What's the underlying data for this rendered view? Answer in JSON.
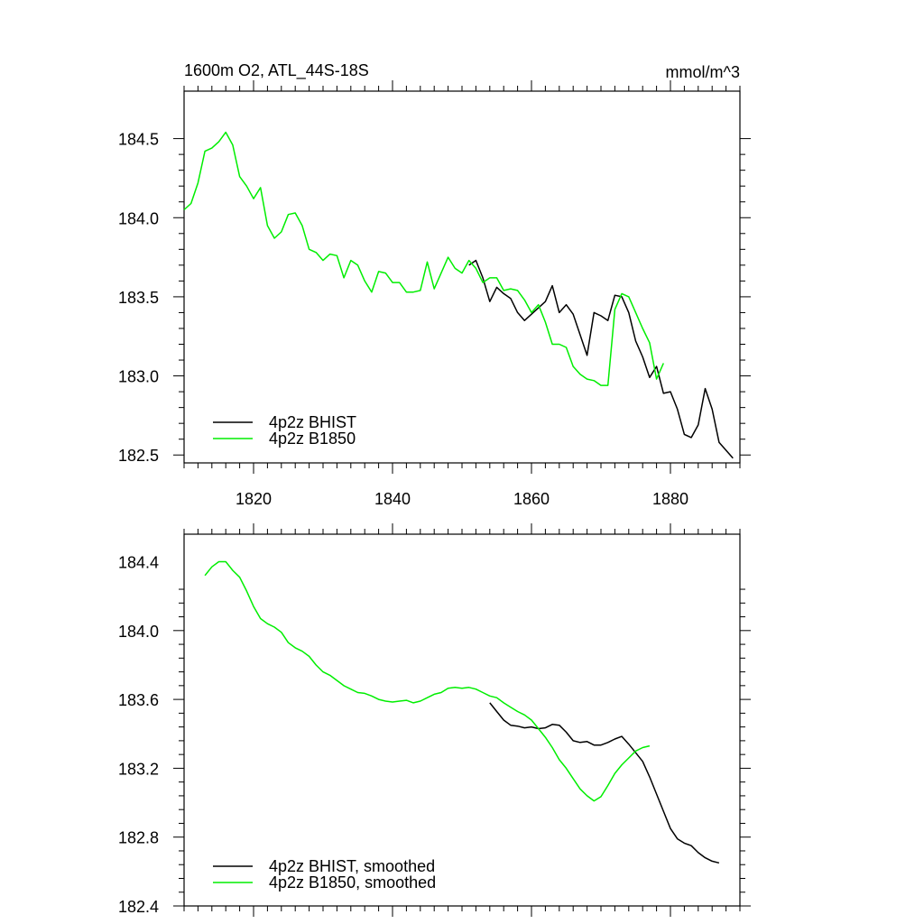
{
  "chart_data": [
    {
      "type": "line",
      "title": "1600m O2, ATL_44S-18S",
      "units": "mmol/m^3",
      "xlim": [
        1810,
        1890
      ],
      "ylim": [
        182.45,
        184.8
      ],
      "xticks": [
        1820,
        1840,
        1860,
        1880
      ],
      "xtick_labels": [
        "1820",
        "1840",
        "1860",
        "1880"
      ],
      "yticks": [
        182.5,
        183.0,
        183.5,
        184.0,
        184.5
      ],
      "ytick_labels": [
        "182.5",
        "183.0",
        "183.5",
        "184.0",
        "184.5"
      ],
      "legend_position": "bottom-left",
      "series": [
        {
          "name": "4p2z BHIST",
          "color": "#000000",
          "x": [
            1851,
            1852,
            1853,
            1854,
            1855,
            1856,
            1857,
            1858,
            1859,
            1860,
            1861,
            1862,
            1863,
            1864,
            1865,
            1866,
            1867,
            1868,
            1869,
            1870,
            1871,
            1872,
            1873,
            1874,
            1875,
            1876,
            1877,
            1878,
            1879,
            1880,
            1881,
            1882,
            1883,
            1884,
            1885,
            1886,
            1887,
            1888,
            1889
          ],
          "y": [
            183.7,
            183.73,
            183.62,
            183.47,
            183.56,
            183.52,
            183.49,
            183.4,
            183.35,
            183.39,
            183.43,
            183.47,
            183.57,
            183.4,
            183.45,
            183.39,
            183.26,
            183.13,
            183.4,
            183.38,
            183.35,
            183.51,
            183.5,
            183.4,
            183.22,
            183.12,
            182.99,
            183.06,
            182.89,
            182.9,
            182.79,
            182.63,
            182.61,
            182.69,
            182.92,
            182.79,
            182.58,
            182.53,
            182.48
          ]
        },
        {
          "name": "4p2z B1850",
          "color": "#00ee00",
          "x": [
            1810,
            1811,
            1812,
            1813,
            1814,
            1815,
            1816,
            1817,
            1818,
            1819,
            1820,
            1821,
            1822,
            1823,
            1824,
            1825,
            1826,
            1827,
            1828,
            1829,
            1830,
            1831,
            1832,
            1833,
            1834,
            1835,
            1836,
            1837,
            1838,
            1839,
            1840,
            1841,
            1842,
            1843,
            1844,
            1845,
            1846,
            1847,
            1848,
            1849,
            1850,
            1851,
            1852,
            1853,
            1854,
            1855,
            1856,
            1857,
            1858,
            1859,
            1860,
            1861,
            1862,
            1863,
            1864,
            1865,
            1866,
            1867,
            1868,
            1869,
            1870,
            1871,
            1872,
            1873,
            1874,
            1875,
            1876,
            1877,
            1878,
            1879
          ],
          "y": [
            184.05,
            184.09,
            184.22,
            184.42,
            184.44,
            184.48,
            184.54,
            184.46,
            184.26,
            184.2,
            184.12,
            184.19,
            183.95,
            183.87,
            183.91,
            184.02,
            184.03,
            183.95,
            183.8,
            183.78,
            183.73,
            183.77,
            183.76,
            183.62,
            183.73,
            183.7,
            183.6,
            183.53,
            183.66,
            183.65,
            183.59,
            183.59,
            183.53,
            183.53,
            183.54,
            183.72,
            183.55,
            183.65,
            183.75,
            183.68,
            183.65,
            183.73,
            183.68,
            183.59,
            183.62,
            183.62,
            183.54,
            183.55,
            183.54,
            183.48,
            183.4,
            183.45,
            183.34,
            183.2,
            183.2,
            183.18,
            183.06,
            183.01,
            182.98,
            182.97,
            182.94,
            182.94,
            183.42,
            183.52,
            183.5,
            183.4,
            183.3,
            183.21,
            182.98,
            183.08
          ]
        }
      ]
    },
    {
      "type": "line",
      "xlim": [
        1810,
        1890
      ],
      "ylim": [
        182.4,
        184.56
      ],
      "xticks": [
        1820,
        1840,
        1860,
        1880
      ],
      "yticks": [
        182.4,
        182.8,
        183.2,
        183.6,
        184.0,
        184.4
      ],
      "ytick_labels": [
        "182.4",
        "182.8",
        "183.2",
        "183.6",
        "184.0",
        "184.4"
      ],
      "legend_position": "bottom-left",
      "series": [
        {
          "name": "4p2z BHIST, smoothed",
          "color": "#000000",
          "x": [
            1854,
            1855,
            1856,
            1857,
            1858,
            1859,
            1860,
            1861,
            1862,
            1863,
            1864,
            1865,
            1866,
            1867,
            1868,
            1869,
            1870,
            1871,
            1872,
            1873,
            1874,
            1875,
            1876,
            1877,
            1878,
            1879,
            1880,
            1881,
            1882,
            1883,
            1884,
            1885,
            1886,
            1887
          ],
          "y": [
            183.58,
            183.53,
            183.48,
            183.45,
            183.445,
            183.435,
            183.44,
            183.43,
            183.435,
            183.455,
            183.45,
            183.41,
            183.36,
            183.35,
            183.355,
            183.335,
            183.335,
            183.35,
            183.37,
            183.385,
            183.34,
            183.29,
            183.24,
            183.15,
            183.05,
            182.95,
            182.85,
            182.79,
            182.765,
            182.75,
            182.71,
            182.68,
            182.66,
            182.65
          ]
        },
        {
          "name": "4p2z B1850, smoothed",
          "color": "#00ee00",
          "x": [
            1813,
            1814,
            1815,
            1816,
            1817,
            1818,
            1819,
            1820,
            1821,
            1822,
            1823,
            1824,
            1825,
            1826,
            1827,
            1828,
            1829,
            1830,
            1831,
            1832,
            1833,
            1834,
            1835,
            1836,
            1837,
            1838,
            1839,
            1840,
            1841,
            1842,
            1843,
            1844,
            1845,
            1846,
            1847,
            1848,
            1849,
            1850,
            1851,
            1852,
            1853,
            1854,
            1855,
            1856,
            1857,
            1858,
            1859,
            1860,
            1861,
            1862,
            1863,
            1864,
            1865,
            1866,
            1867,
            1868,
            1869,
            1870,
            1871,
            1872,
            1873,
            1874,
            1875,
            1876,
            1877
          ],
          "y": [
            184.32,
            184.37,
            184.4,
            184.4,
            184.35,
            184.31,
            184.23,
            184.14,
            184.07,
            184.04,
            184.02,
            183.99,
            183.93,
            183.9,
            183.88,
            183.85,
            183.8,
            183.76,
            183.74,
            183.71,
            183.68,
            183.66,
            183.64,
            183.635,
            183.62,
            183.6,
            183.59,
            183.585,
            183.59,
            183.595,
            183.58,
            183.59,
            183.61,
            183.63,
            183.64,
            183.665,
            183.67,
            183.665,
            183.67,
            183.66,
            183.64,
            183.62,
            183.61,
            183.58,
            183.555,
            183.53,
            183.51,
            183.48,
            183.43,
            183.38,
            183.32,
            183.25,
            183.2,
            183.14,
            183.08,
            183.04,
            183.01,
            183.035,
            183.1,
            183.17,
            183.22,
            183.26,
            183.3,
            183.32,
            183.33
          ]
        }
      ]
    }
  ]
}
